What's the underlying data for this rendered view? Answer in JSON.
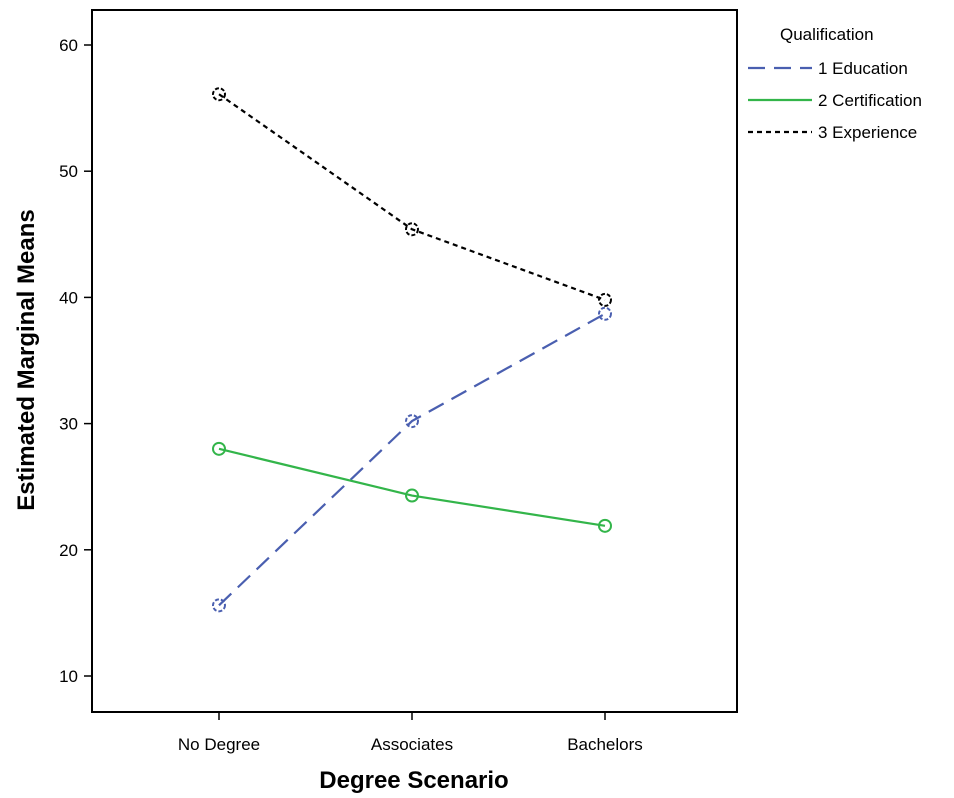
{
  "chart_data": {
    "type": "line",
    "xlabel": "Degree Scenario",
    "ylabel": "Estimated Marginal Means",
    "categories": [
      "No Degree",
      "Associates",
      "Bachelors"
    ],
    "ylim": [
      7,
      63
    ],
    "yticks": [
      10,
      20,
      30,
      40,
      50,
      60
    ],
    "grid": false,
    "legend": {
      "title": "Qualification",
      "placement": "outside-top-right"
    },
    "series": [
      {
        "name": "1 Education",
        "values": [
          15.6,
          30.2,
          38.7
        ],
        "color": "#4a5fb0",
        "dash": "long-dash"
      },
      {
        "name": "2 Certification",
        "values": [
          28.0,
          24.3,
          21.9
        ],
        "color": "#33b54a",
        "dash": "solid"
      },
      {
        "name": "3 Experience",
        "values": [
          56.1,
          45.4,
          39.8
        ],
        "color": "#000000",
        "dash": "short-dash"
      }
    ]
  }
}
